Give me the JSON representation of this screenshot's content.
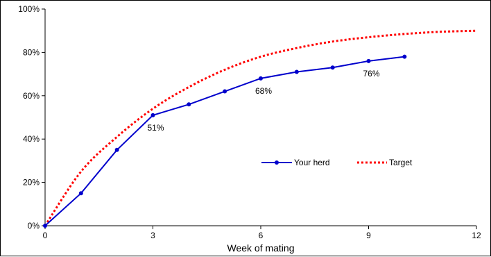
{
  "chart_data": {
    "type": "line",
    "title": "",
    "xlabel": "Week of mating",
    "ylabel": "",
    "xlim": [
      0,
      12
    ],
    "ylim": [
      0,
      100
    ],
    "x_ticks": [
      0,
      3,
      6,
      9,
      12
    ],
    "y_ticks": [
      0,
      20,
      40,
      60,
      80,
      100
    ],
    "x_tick_labels": [
      "0",
      "3",
      "6",
      "9",
      "12"
    ],
    "y_tick_labels": [
      "0%",
      "20%",
      "40%",
      "60%",
      "80%",
      "100%"
    ],
    "grid": false,
    "legend_position": "center-right",
    "series": [
      {
        "name": "Your herd",
        "style": "solid-with-markers",
        "color": "#0000CC",
        "x": [
          0,
          1,
          2,
          3,
          4,
          5,
          6,
          7,
          8,
          9,
          10
        ],
        "y": [
          0,
          15,
          35,
          51,
          56,
          62,
          68,
          71,
          73,
          76,
          78
        ]
      },
      {
        "name": "Target",
        "style": "dotted",
        "color": "#FF0000",
        "x": [
          0,
          1,
          2,
          3,
          4,
          5,
          6,
          7,
          8,
          9,
          10,
          11,
          12
        ],
        "y": [
          0,
          25,
          41,
          54,
          64,
          72,
          78,
          82,
          85,
          87,
          88.5,
          89.5,
          90
        ]
      }
    ],
    "annotations": [
      {
        "x": 3,
        "y": 51,
        "text": "51%"
      },
      {
        "x": 6,
        "y": 68,
        "text": "68%"
      },
      {
        "x": 9,
        "y": 76,
        "text": "76%"
      }
    ]
  }
}
